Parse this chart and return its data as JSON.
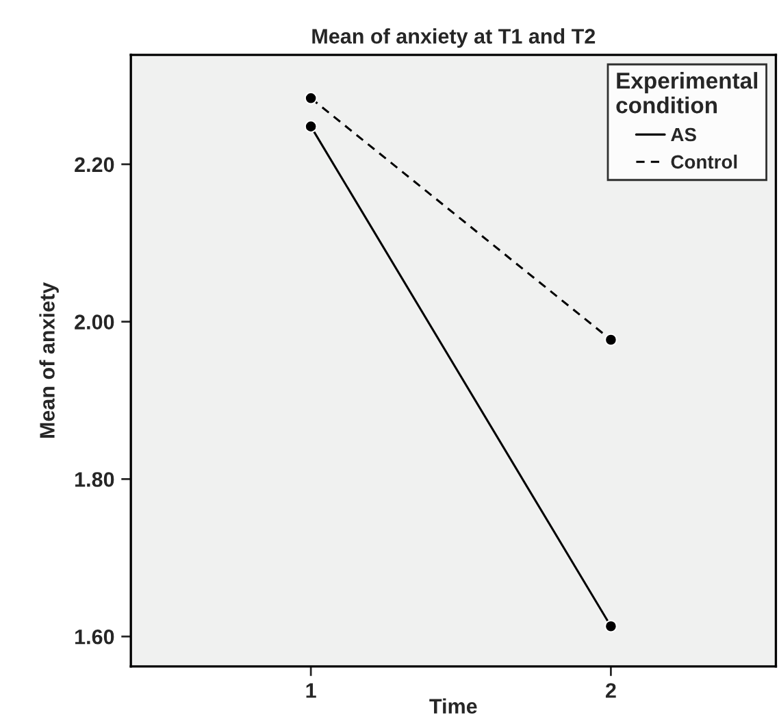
{
  "chart_data": {
    "type": "line",
    "title": "Mean of anxiety at T1 and T2",
    "xlabel": "Time",
    "ylabel": "Mean of anxiety",
    "x": [
      1,
      2
    ],
    "xlim": [
      0.4,
      2.55
    ],
    "xticks": [
      1,
      2
    ],
    "ylim": [
      1.562,
      2.339
    ],
    "yticks": [
      {
        "value": 1.6,
        "label": "1.60"
      },
      {
        "value": 1.8,
        "label": "1.80"
      },
      {
        "value": 2.0,
        "label": "2.00"
      },
      {
        "value": 2.2,
        "label": "2.20"
      }
    ],
    "series": [
      {
        "name": "AS",
        "color": "#000000",
        "values": [
          2.248,
          1.613
        ],
        "line_style": "solid"
      },
      {
        "name": "Control",
        "color": "#000000",
        "values": [
          2.284,
          1.977
        ],
        "line_style": "dashed"
      }
    ],
    "marker": "circle",
    "legend": "top right",
    "legend_title": "Experimental\ncondition",
    "grid": false
  }
}
